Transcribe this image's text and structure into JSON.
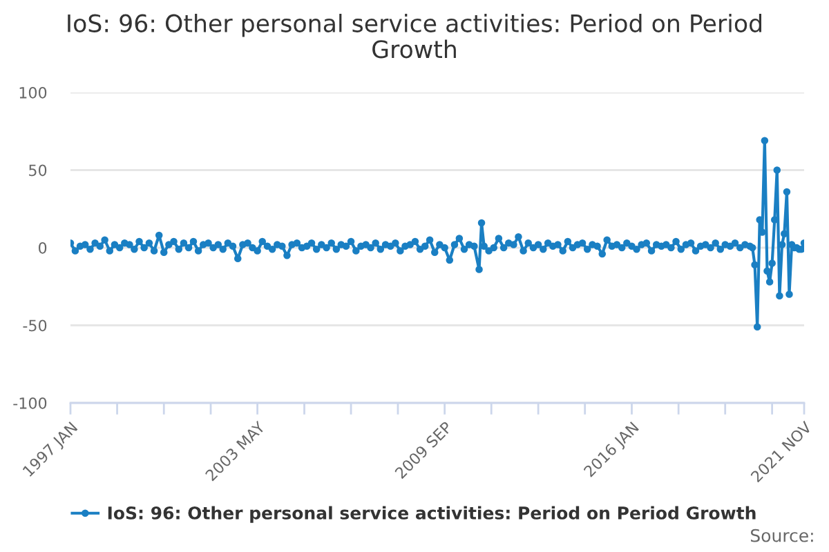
{
  "chart_data": {
    "type": "line",
    "title": "IoS: 96: Other personal service activities: Period on Period Growth",
    "x": [
      "1997-01",
      "1997-03",
      "1997-05",
      "1997-07",
      "1997-09",
      "1997-11",
      "1998-01",
      "1998-03",
      "1998-05",
      "1998-07",
      "1998-09",
      "1998-11",
      "1999-01",
      "1999-03",
      "1999-05",
      "1999-07",
      "1999-09",
      "1999-11",
      "2000-01",
      "2000-03",
      "2000-05",
      "2000-07",
      "2000-09",
      "2000-11",
      "2001-01",
      "2001-03",
      "2001-05",
      "2001-07",
      "2001-09",
      "2001-11",
      "2002-01",
      "2002-03",
      "2002-05",
      "2002-07",
      "2002-09",
      "2002-11",
      "2003-01",
      "2003-03",
      "2003-05",
      "2003-07",
      "2003-09",
      "2003-11",
      "2004-01",
      "2004-03",
      "2004-05",
      "2004-07",
      "2004-09",
      "2004-11",
      "2005-01",
      "2005-03",
      "2005-05",
      "2005-07",
      "2005-09",
      "2005-11",
      "2006-01",
      "2006-03",
      "2006-05",
      "2006-07",
      "2006-09",
      "2006-11",
      "2007-01",
      "2007-03",
      "2007-05",
      "2007-07",
      "2007-09",
      "2007-11",
      "2008-01",
      "2008-03",
      "2008-05",
      "2008-07",
      "2008-09",
      "2008-11",
      "2009-01",
      "2009-03",
      "2009-05",
      "2009-07",
      "2009-09",
      "2009-11",
      "2010-01",
      "2010-03",
      "2010-05",
      "2010-07",
      "2010-09",
      "2010-11",
      "2010-12",
      "2011-01",
      "2011-03",
      "2011-05",
      "2011-07",
      "2011-09",
      "2011-11",
      "2012-01",
      "2012-03",
      "2012-05",
      "2012-07",
      "2012-09",
      "2012-11",
      "2013-01",
      "2013-03",
      "2013-05",
      "2013-07",
      "2013-09",
      "2013-11",
      "2014-01",
      "2014-03",
      "2014-05",
      "2014-07",
      "2014-09",
      "2014-11",
      "2015-01",
      "2015-03",
      "2015-05",
      "2015-07",
      "2015-09",
      "2015-11",
      "2016-01",
      "2016-03",
      "2016-05",
      "2016-07",
      "2016-09",
      "2016-11",
      "2017-01",
      "2017-03",
      "2017-05",
      "2017-07",
      "2017-09",
      "2017-11",
      "2018-01",
      "2018-03",
      "2018-05",
      "2018-07",
      "2018-09",
      "2018-11",
      "2019-01",
      "2019-03",
      "2019-05",
      "2019-07",
      "2019-09",
      "2019-11",
      "2020-01",
      "2020-02",
      "2020-03",
      "2020-04",
      "2020-05",
      "2020-06",
      "2020-07",
      "2020-08",
      "2020-09",
      "2020-10",
      "2020-11",
      "2020-12",
      "2021-01",
      "2021-02",
      "2021-03",
      "2021-04",
      "2021-05",
      "2021-06",
      "2021-07",
      "2021-08",
      "2021-09",
      "2021-10",
      "2021-11"
    ],
    "series": [
      {
        "name": "IoS: 96: Other personal service activities: Period on Period Growth",
        "color": "#1a7fc3",
        "values": [
          3,
          -2,
          1,
          2,
          -1,
          3,
          1,
          5,
          -2,
          2,
          0,
          3,
          2,
          -1,
          4,
          0,
          3,
          -2,
          8,
          -3,
          2,
          4,
          -1,
          3,
          0,
          4,
          -2,
          2,
          3,
          0,
          2,
          -1,
          3,
          1,
          -7,
          2,
          3,
          0,
          -2,
          4,
          1,
          -1,
          2,
          1,
          -5,
          2,
          3,
          0,
          1,
          3,
          -1,
          2,
          0,
          3,
          -1,
          2,
          1,
          4,
          -2,
          1,
          2,
          0,
          3,
          -1,
          2,
          1,
          3,
          -2,
          1,
          2,
          4,
          -1,
          1,
          5,
          -3,
          2,
          0,
          -8,
          2,
          6,
          -1,
          2,
          1,
          -14,
          16,
          1,
          -2,
          0,
          6,
          0,
          3,
          2,
          7,
          -2,
          3,
          0,
          2,
          -1,
          3,
          1,
          2,
          -2,
          4,
          0,
          2,
          3,
          -1,
          2,
          1,
          -4,
          5,
          1,
          2,
          0,
          3,
          1,
          -1,
          2,
          3,
          -2,
          2,
          1,
          2,
          0,
          4,
          -1,
          2,
          3,
          -2,
          1,
          2,
          0,
          3,
          -1,
          2,
          1,
          3,
          0,
          2,
          1,
          0,
          -11,
          -51,
          18,
          10,
          69,
          -15,
          -22,
          -10,
          18,
          50,
          -31,
          2,
          9,
          36,
          -30,
          2,
          0,
          0,
          -1,
          -1,
          3
        ]
      }
    ],
    "xlim": [
      "1997-01",
      "2021-11"
    ],
    "xticks": [
      {
        "value": "1997-01",
        "label": "1997 JAN"
      },
      {
        "value": "1998-08",
        "label": null
      },
      {
        "value": "2000-03",
        "label": null
      },
      {
        "value": "2001-10",
        "label": null
      },
      {
        "value": "2003-05",
        "label": "2003 MAY"
      },
      {
        "value": "2004-12",
        "label": null
      },
      {
        "value": "2006-07",
        "label": null
      },
      {
        "value": "2008-02",
        "label": null
      },
      {
        "value": "2009-09",
        "label": "2009 SEP"
      },
      {
        "value": "2011-04",
        "label": null
      },
      {
        "value": "2012-11",
        "label": null
      },
      {
        "value": "2014-06",
        "label": null
      },
      {
        "value": "2016-01",
        "label": "2016 JAN"
      },
      {
        "value": "2017-08",
        "label": null
      },
      {
        "value": "2019-03",
        "label": null
      },
      {
        "value": "2020-10",
        "label": null
      },
      {
        "value": "2021-11",
        "label": "2021 NOV"
      }
    ],
    "ylim": [
      -100,
      100
    ],
    "yticks": [
      -100,
      -50,
      0,
      50,
      100
    ],
    "grid": "y",
    "legend": "bottom",
    "marker": "circle",
    "line_style": "solid",
    "annotations": [
      "Source:"
    ]
  }
}
